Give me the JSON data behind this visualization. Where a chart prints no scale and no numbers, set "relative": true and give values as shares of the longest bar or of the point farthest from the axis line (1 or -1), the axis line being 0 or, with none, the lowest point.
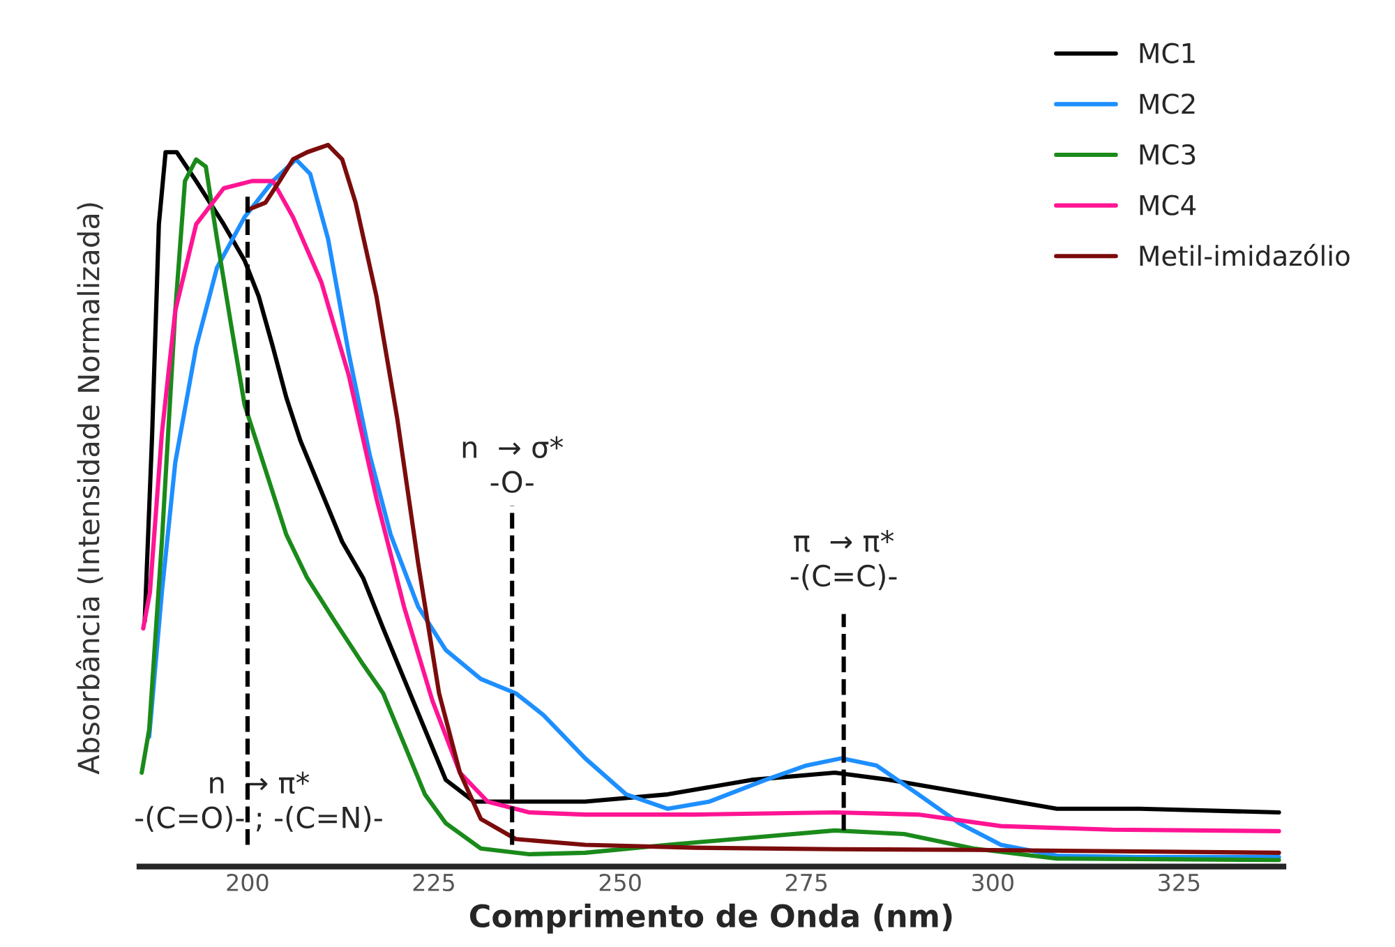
{
  "chart_data": {
    "type": "line",
    "xlabel": "Comprimento de Onda (nm)",
    "ylabel": "Absorbância (Intensidade Normalizada)",
    "relative": true,
    "xlim": [
      185.5,
      339
    ],
    "xticks": [
      200,
      225,
      250,
      275,
      300,
      325
    ],
    "grid": false,
    "legend": "top right",
    "line_style": "solid",
    "series": [
      {
        "name": "MC1",
        "color": "#000000",
        "x": [
          186.2,
          187.2,
          188.1,
          189.0,
          190.5,
          193.1,
          196.8,
          199.6,
          201.5,
          203.4,
          205.2,
          207.1,
          209.9,
          212.7,
          215.5,
          218.2,
          221.0,
          223.8,
          226.6,
          230.4,
          236,
          245.3,
          256.4,
          267.6,
          278.8,
          286.2,
          297.4,
          308.6,
          319.7,
          338.4
        ],
        "values": [
          0.34,
          0.6,
          0.89,
          0.99,
          0.99,
          0.95,
          0.89,
          0.84,
          0.79,
          0.72,
          0.65,
          0.59,
          0.52,
          0.45,
          0.4,
          0.33,
          0.26,
          0.19,
          0.12,
          0.09,
          0.09,
          0.09,
          0.1,
          0.12,
          0.13,
          0.12,
          0.1,
          0.08,
          0.08,
          0.075
        ]
      },
      {
        "name": "MC2",
        "color": "#1e8fff",
        "x": [
          186.8,
          188.5,
          190.3,
          193.1,
          195.9,
          199.6,
          203.4,
          206.5,
          208.4,
          210.8,
          213.6,
          216.4,
          219.2,
          222.9,
          226.6,
          231.3,
          236,
          239.7,
          245.3,
          250.8,
          256.4,
          262,
          269.5,
          275,
          279.7,
          284.4,
          290,
          295.5,
          301.1,
          308.6,
          319.7,
          338.4
        ],
        "values": [
          0.18,
          0.38,
          0.56,
          0.72,
          0.83,
          0.9,
          0.95,
          0.98,
          0.96,
          0.87,
          0.71,
          0.57,
          0.46,
          0.36,
          0.3,
          0.26,
          0.24,
          0.21,
          0.15,
          0.1,
          0.08,
          0.09,
          0.12,
          0.14,
          0.15,
          0.14,
          0.1,
          0.06,
          0.03,
          0.015,
          0.013,
          0.013
        ]
      },
      {
        "name": "MC3",
        "color": "#1a8a1a",
        "x": [
          185.8,
          186.8,
          188.5,
          190.3,
          191.6,
          193.1,
          194.4,
          195.9,
          197.8,
          199.6,
          202.4,
          205.2,
          208,
          211.7,
          215.5,
          218.2,
          221,
          223.8,
          226.6,
          231.3,
          237.8,
          245.3,
          256.4,
          267.6,
          278.8,
          288.1,
          297.4,
          308.6,
          338.4
        ],
        "values": [
          0.13,
          0.19,
          0.45,
          0.77,
          0.95,
          0.98,
          0.97,
          0.87,
          0.75,
          0.64,
          0.55,
          0.46,
          0.4,
          0.34,
          0.28,
          0.24,
          0.17,
          0.1,
          0.06,
          0.025,
          0.017,
          0.019,
          0.03,
          0.04,
          0.05,
          0.045,
          0.025,
          0.011,
          0.009
        ]
      },
      {
        "name": "MC4",
        "color": "#ff1493",
        "x": [
          186,
          186.9,
          188.5,
          190.3,
          193.1,
          196.8,
          200.6,
          203.4,
          206.1,
          209.9,
          213.6,
          217.3,
          221,
          224.8,
          228.5,
          232.2,
          237.8,
          245.3,
          260.1,
          278.8,
          290,
          301.1,
          316,
          338.4
        ],
        "values": [
          0.33,
          0.38,
          0.6,
          0.77,
          0.89,
          0.94,
          0.95,
          0.95,
          0.9,
          0.81,
          0.68,
          0.51,
          0.36,
          0.23,
          0.13,
          0.09,
          0.075,
          0.072,
          0.072,
          0.075,
          0.072,
          0.056,
          0.051,
          0.049
        ]
      },
      {
        "name": "Metil-imidazólio",
        "color": "#7b0c0c",
        "x": [
          200,
          202.4,
          204.3,
          206.1,
          208,
          210.8,
          212.7,
          214.5,
          217.3,
          220.1,
          222.9,
          225.7,
          228.5,
          231.3,
          236,
          245.3,
          260.1,
          278.8,
          297.4,
          338.4
        ],
        "values": [
          0.91,
          0.92,
          0.95,
          0.98,
          0.99,
          1.0,
          0.98,
          0.92,
          0.79,
          0.62,
          0.42,
          0.24,
          0.13,
          0.066,
          0.038,
          0.03,
          0.026,
          0.024,
          0.023,
          0.019
        ]
      }
    ],
    "ref_lines": [
      {
        "axis": "x",
        "value": 200,
        "label": "n  → π*\n-(C=O)- ; -(C=N)-",
        "line_style": "dashed",
        "color": "#000000"
      },
      {
        "axis": "x",
        "value": 235.5,
        "label": "n  → σ*\n-O-",
        "line_style": "dashed",
        "color": "#000000"
      },
      {
        "axis": "x",
        "value": 280,
        "label": "π  → π*\n-(C=C)-",
        "line_style": "dashed",
        "color": "#000000"
      }
    ]
  }
}
